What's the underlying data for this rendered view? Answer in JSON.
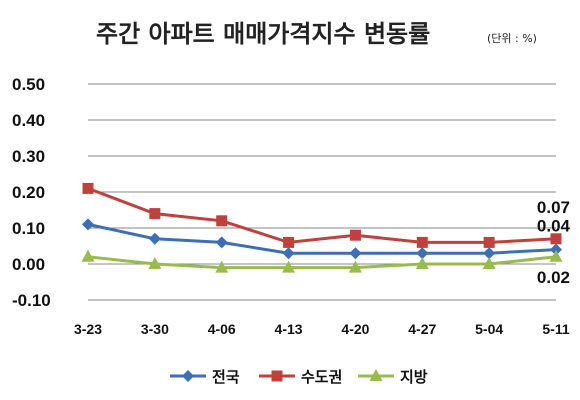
{
  "chart_data": {
    "type": "line",
    "title": "주간 아파트 매매가격지수 변동률",
    "unit": "(단위 : %)",
    "categories": [
      "3-23",
      "3-30",
      "4-06",
      "4-13",
      "4-20",
      "4-27",
      "5-04",
      "5-11"
    ],
    "y_ticks": [
      "0.50",
      "0.40",
      "0.30",
      "0.20",
      "0.10",
      "0.00",
      "-0.10"
    ],
    "ylim": [
      -0.1,
      0.5
    ],
    "grid": true,
    "legend_position": "bottom",
    "series": [
      {
        "name": "전국",
        "color": "#3d6fb6",
        "marker": "diamond",
        "values": [
          0.11,
          0.07,
          0.06,
          0.03,
          0.03,
          0.03,
          0.03,
          0.04
        ]
      },
      {
        "name": "수도권",
        "color": "#c0403c",
        "marker": "square",
        "values": [
          0.21,
          0.14,
          0.12,
          0.06,
          0.08,
          0.06,
          0.06,
          0.07
        ]
      },
      {
        "name": "지방",
        "color": "#98bb4e",
        "marker": "triangle",
        "values": [
          0.02,
          0.0,
          -0.01,
          -0.01,
          -0.01,
          0.0,
          0.0,
          0.02
        ]
      }
    ],
    "annotations": [
      {
        "series": "수도권",
        "text": "0.07"
      },
      {
        "series": "전국",
        "text": "0.04"
      },
      {
        "series": "지방",
        "text": "0.02"
      }
    ]
  }
}
